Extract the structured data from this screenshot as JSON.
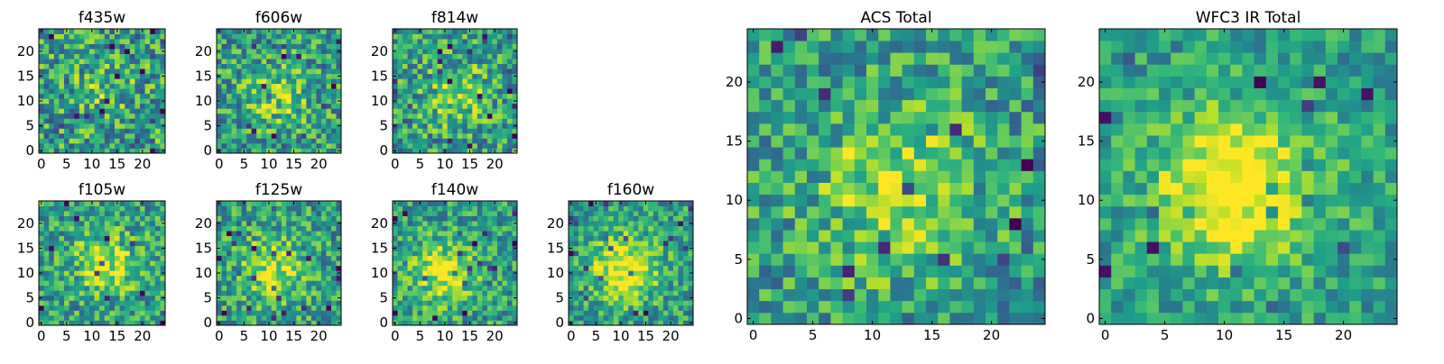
{
  "figure": {
    "colormap": "viridis",
    "colors": {
      "cmap_low": "#440154",
      "cmap_mid": "#21918c",
      "cmap_high": "#fde725",
      "background": "#ffffff",
      "axis": "#000000"
    }
  },
  "chart_data": [
    {
      "type": "heatmap",
      "id": "f435w",
      "title": "f435w",
      "grid": [
        25,
        25
      ],
      "xlim": [
        0,
        24
      ],
      "ylim": [
        0,
        24
      ],
      "xticks": [
        0,
        5,
        10,
        15,
        20
      ],
      "yticks": [
        0,
        5,
        10,
        15,
        20
      ],
      "peak": [
        12,
        12
      ],
      "peak_strength": 0.15,
      "noise": 0.55,
      "seed": 11
    },
    {
      "type": "heatmap",
      "id": "f606w",
      "title": "f606w",
      "grid": [
        25,
        25
      ],
      "xlim": [
        0,
        24
      ],
      "ylim": [
        0,
        24
      ],
      "xticks": [
        0,
        5,
        10,
        15,
        20
      ],
      "yticks": [
        0,
        5,
        10,
        15,
        20
      ],
      "peak": [
        12,
        11
      ],
      "peak_strength": 0.25,
      "noise": 0.5,
      "seed": 23
    },
    {
      "type": "heatmap",
      "id": "f814w",
      "title": "f814w",
      "grid": [
        25,
        25
      ],
      "xlim": [
        0,
        24
      ],
      "ylim": [
        0,
        24
      ],
      "xticks": [
        0,
        5,
        10,
        15,
        20
      ],
      "yticks": [
        0,
        5,
        10,
        15,
        20
      ],
      "peak": [
        13,
        11
      ],
      "peak_strength": 0.25,
      "noise": 0.5,
      "seed": 37
    },
    {
      "type": "heatmap",
      "id": "f105w",
      "title": "f105w",
      "grid": [
        25,
        25
      ],
      "xlim": [
        0,
        24
      ],
      "ylim": [
        0,
        24
      ],
      "xticks": [
        0,
        5,
        10,
        15,
        20
      ],
      "yticks": [
        0,
        5,
        10,
        15,
        20
      ],
      "peak": [
        13,
        12
      ],
      "peak_strength": 0.35,
      "noise": 0.45,
      "seed": 41
    },
    {
      "type": "heatmap",
      "id": "f125w",
      "title": "f125w",
      "grid": [
        25,
        25
      ],
      "xlim": [
        0,
        24
      ],
      "ylim": [
        0,
        24
      ],
      "xticks": [
        0,
        5,
        10,
        15,
        20
      ],
      "yticks": [
        0,
        5,
        10,
        15,
        20
      ],
      "peak": [
        11,
        11
      ],
      "peak_strength": 0.35,
      "noise": 0.45,
      "seed": 53
    },
    {
      "type": "heatmap",
      "id": "f140w",
      "title": "f140w",
      "grid": [
        25,
        25
      ],
      "xlim": [
        0,
        24
      ],
      "ylim": [
        0,
        24
      ],
      "xticks": [
        0,
        5,
        10,
        15,
        20
      ],
      "yticks": [
        0,
        5,
        10,
        15,
        20
      ],
      "peak": [
        10,
        10
      ],
      "peak_strength": 0.4,
      "noise": 0.42,
      "seed": 67
    },
    {
      "type": "heatmap",
      "id": "f160w",
      "title": "f160w",
      "grid": [
        25,
        25
      ],
      "xlim": [
        0,
        24
      ],
      "ylim": [
        0,
        24
      ],
      "xticks": [
        0,
        5,
        10,
        15,
        20
      ],
      "yticks": [
        0,
        5,
        10,
        15,
        20
      ],
      "peak": [
        11,
        11
      ],
      "peak_strength": 0.5,
      "noise": 0.4,
      "seed": 79
    },
    {
      "type": "heatmap",
      "id": "acs-total",
      "title": "ACS Total",
      "grid": [
        25,
        25
      ],
      "xlim": [
        0,
        24
      ],
      "ylim": [
        0,
        24
      ],
      "xticks": [
        0,
        5,
        10,
        15,
        20
      ],
      "yticks": [
        0,
        5,
        10,
        15,
        20
      ],
      "peak": [
        12,
        11
      ],
      "peak_strength": 0.35,
      "noise": 0.45,
      "seed": 97
    },
    {
      "type": "heatmap",
      "id": "wfc3-ir-total",
      "title": "WFC3 IR Total",
      "grid": [
        25,
        25
      ],
      "xlim": [
        0,
        24
      ],
      "ylim": [
        0,
        24
      ],
      "xticks": [
        0,
        5,
        10,
        15,
        20
      ],
      "yticks": [
        0,
        5,
        10,
        15,
        20
      ],
      "peak": [
        11,
        11
      ],
      "peak_strength": 0.6,
      "noise": 0.33,
      "seed": 113
    }
  ]
}
